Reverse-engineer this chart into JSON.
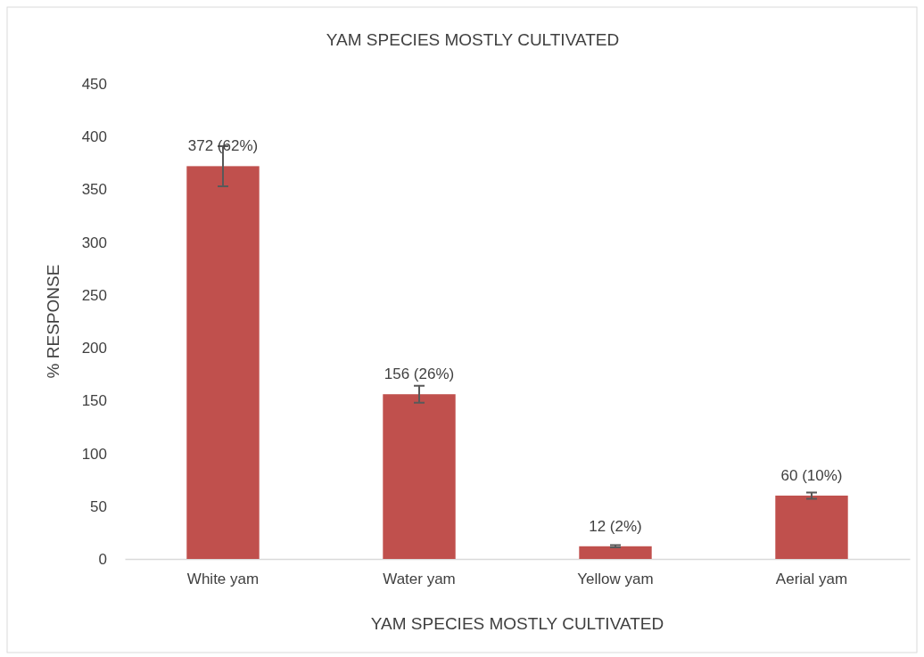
{
  "chart_data": {
    "type": "bar",
    "title": "YAM SPECIES MOSTLY CULTIVATED",
    "xlabel": "YAM SPECIES MOSTLY CULTIVATED",
    "ylabel": "% RESPONSE",
    "categories": [
      "White yam",
      "Water yam",
      "Yellow yam",
      "Aerial yam"
    ],
    "values": [
      372,
      156,
      12,
      60
    ],
    "errors": [
      19,
      8,
      1,
      3
    ],
    "value_labels": [
      "372 (62%)",
      "156 (26%)",
      "12 (2%)",
      "60 (10%)"
    ],
    "color": "#c0504d",
    "ylim": [
      0,
      450
    ],
    "yticks": [
      0,
      50,
      100,
      150,
      200,
      250,
      300,
      350,
      400,
      450
    ],
    "grid": false
  }
}
